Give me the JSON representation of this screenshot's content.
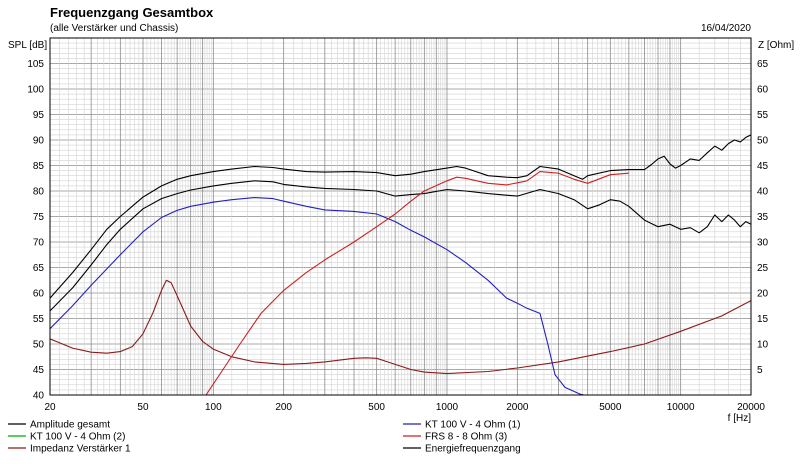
{
  "chart_data": {
    "type": "line",
    "title": "Frequenzgang Gesamtbox",
    "subtitle": "(alle Verstärker und Chassis)",
    "date": "16/04/2020",
    "ylabel_left": "SPL [dB]",
    "ylabel_right": "Z [Ohm]",
    "xlabel": "f [Hz]",
    "x_scale": "log",
    "grid": true,
    "legend_position": "bottom",
    "xlim": [
      20,
      20000
    ],
    "ylim_left": [
      40,
      110
    ],
    "ylim_right": [
      0,
      70
    ],
    "x_ticks": [
      20,
      50,
      100,
      200,
      500,
      1000,
      2000,
      5000,
      10000,
      20000
    ],
    "x_tick_labels": [
      "20",
      "50",
      "100",
      "200",
      "500",
      "1000",
      "2000",
      "5000",
      "10000",
      "20000"
    ],
    "y_left_ticks": [
      40,
      45,
      50,
      55,
      60,
      65,
      70,
      75,
      80,
      85,
      90,
      95,
      100,
      105
    ],
    "y_left_tick_labels": [
      "40",
      "45",
      "50",
      "55",
      "60",
      "65",
      "70",
      "75",
      "80",
      "85",
      "90",
      "95",
      "100",
      "105"
    ],
    "y_right_ticks": [
      5,
      10,
      15,
      20,
      25,
      30,
      35,
      40,
      45,
      50,
      55,
      60,
      65
    ],
    "y_right_tick_labels": [
      "5",
      "10",
      "15",
      "20",
      "25",
      "30",
      "35",
      "40",
      "45",
      "50",
      "55",
      "60",
      "65"
    ],
    "series": [
      {
        "name": "Amplitude gesamt",
        "color": "#000000",
        "axis": "left",
        "points": [
          [
            20,
            56.5
          ],
          [
            25,
            61
          ],
          [
            30,
            65.5
          ],
          [
            35,
            69.5
          ],
          [
            40,
            72.5
          ],
          [
            50,
            76.5
          ],
          [
            60,
            78.5
          ],
          [
            70,
            79.5
          ],
          [
            80,
            80.2
          ],
          [
            100,
            81
          ],
          [
            120,
            81.5
          ],
          [
            150,
            82
          ],
          [
            180,
            81.8
          ],
          [
            200,
            81.3
          ],
          [
            250,
            80.8
          ],
          [
            300,
            80.5
          ],
          [
            400,
            80.3
          ],
          [
            500,
            80
          ],
          [
            600,
            79
          ],
          [
            700,
            79.3
          ],
          [
            800,
            79.5
          ],
          [
            1000,
            80.3
          ],
          [
            1200,
            80
          ],
          [
            1500,
            79.5
          ],
          [
            2000,
            79
          ],
          [
            2500,
            80.3
          ],
          [
            3000,
            79.5
          ],
          [
            3500,
            78.3
          ],
          [
            4000,
            76.5
          ],
          [
            4500,
            77.3
          ],
          [
            5000,
            78.3
          ],
          [
            5500,
            78
          ],
          [
            6000,
            77
          ],
          [
            7000,
            74.3
          ],
          [
            8000,
            73
          ],
          [
            9000,
            73.5
          ],
          [
            10000,
            72.5
          ],
          [
            11000,
            72.8
          ],
          [
            12000,
            71.8
          ],
          [
            13000,
            73
          ],
          [
            14000,
            75.3
          ],
          [
            15000,
            74
          ],
          [
            16000,
            75.3
          ],
          [
            17000,
            74.3
          ],
          [
            18000,
            73
          ],
          [
            19000,
            74
          ],
          [
            20000,
            73.5
          ]
        ]
      },
      {
        "name": "KT 100 V - 4 Ohm (2)",
        "color": "#00aa00",
        "axis": "left",
        "points": []
      },
      {
        "name": "Impedanz Verstärker 1",
        "color": "#8b1a1a",
        "axis": "right",
        "points": [
          [
            20,
            11
          ],
          [
            25,
            9.2
          ],
          [
            30,
            8.4
          ],
          [
            35,
            8.2
          ],
          [
            40,
            8.5
          ],
          [
            45,
            9.5
          ],
          [
            50,
            12
          ],
          [
            55,
            16
          ],
          [
            60,
            20.5
          ],
          [
            63,
            22.5
          ],
          [
            66,
            22
          ],
          [
            70,
            19.5
          ],
          [
            80,
            13.5
          ],
          [
            90,
            10.5
          ],
          [
            100,
            9
          ],
          [
            120,
            7.5
          ],
          [
            150,
            6.5
          ],
          [
            200,
            6
          ],
          [
            250,
            6.2
          ],
          [
            300,
            6.5
          ],
          [
            400,
            7.2
          ],
          [
            450,
            7.3
          ],
          [
            500,
            7.2
          ],
          [
            600,
            6
          ],
          [
            700,
            5
          ],
          [
            800,
            4.5
          ],
          [
            1000,
            4.2
          ],
          [
            1500,
            4.6
          ],
          [
            2000,
            5.3
          ],
          [
            3000,
            6.5
          ],
          [
            5000,
            8.5
          ],
          [
            7000,
            10
          ],
          [
            10000,
            12.5
          ],
          [
            15000,
            15.5
          ],
          [
            20000,
            18.5
          ]
        ]
      },
      {
        "name": "KT 100 V - 4 Ohm (1)",
        "color": "#2222bb",
        "axis": "left",
        "points": [
          [
            20,
            53
          ],
          [
            25,
            57.5
          ],
          [
            30,
            61.5
          ],
          [
            40,
            67.5
          ],
          [
            50,
            72
          ],
          [
            60,
            74.8
          ],
          [
            70,
            76.2
          ],
          [
            80,
            77
          ],
          [
            100,
            77.8
          ],
          [
            120,
            78.3
          ],
          [
            150,
            78.7
          ],
          [
            180,
            78.5
          ],
          [
            200,
            78
          ],
          [
            250,
            77
          ],
          [
            300,
            76.3
          ],
          [
            400,
            76
          ],
          [
            500,
            75.5
          ],
          [
            600,
            74
          ],
          [
            700,
            72.3
          ],
          [
            800,
            71
          ],
          [
            1000,
            68.5
          ],
          [
            1200,
            66
          ],
          [
            1500,
            62.5
          ],
          [
            1800,
            59
          ],
          [
            2000,
            58
          ],
          [
            2200,
            57
          ],
          [
            2500,
            56
          ],
          [
            2700,
            50
          ],
          [
            2900,
            44
          ],
          [
            3200,
            41.5
          ],
          [
            3700,
            40.2
          ],
          [
            4000,
            39.8
          ]
        ]
      },
      {
        "name": "FRS 8 - 8 Ohm (3)",
        "color": "#cc2222",
        "axis": "left",
        "points": [
          [
            93,
            40
          ],
          [
            110,
            45
          ],
          [
            130,
            50
          ],
          [
            160,
            56
          ],
          [
            200,
            60.5
          ],
          [
            250,
            64
          ],
          [
            300,
            66.5
          ],
          [
            400,
            70
          ],
          [
            500,
            73
          ],
          [
            600,
            75.5
          ],
          [
            700,
            78
          ],
          [
            800,
            80
          ],
          [
            1000,
            82
          ],
          [
            1100,
            82.7
          ],
          [
            1200,
            82.5
          ],
          [
            1500,
            81.5
          ],
          [
            1800,
            81.2
          ],
          [
            2000,
            81.6
          ],
          [
            2200,
            82
          ],
          [
            2500,
            83.8
          ],
          [
            3000,
            83.5
          ],
          [
            3500,
            82.3
          ],
          [
            4000,
            81.5
          ],
          [
            5000,
            83.2
          ],
          [
            6000,
            83.5
          ]
        ]
      },
      {
        "name": "Energiefrequenzgang",
        "color": "#000000",
        "axis": "left",
        "points": [
          [
            20,
            59
          ],
          [
            25,
            64
          ],
          [
            30,
            68.5
          ],
          [
            35,
            72.5
          ],
          [
            40,
            75
          ],
          [
            50,
            78.8
          ],
          [
            60,
            81
          ],
          [
            70,
            82.3
          ],
          [
            80,
            83
          ],
          [
            100,
            83.8
          ],
          [
            120,
            84.3
          ],
          [
            150,
            84.8
          ],
          [
            180,
            84.6
          ],
          [
            200,
            84.3
          ],
          [
            250,
            83.8
          ],
          [
            300,
            83.7
          ],
          [
            400,
            83.8
          ],
          [
            500,
            83.6
          ],
          [
            600,
            83
          ],
          [
            700,
            83.3
          ],
          [
            800,
            83.8
          ],
          [
            1000,
            84.5
          ],
          [
            1100,
            84.8
          ],
          [
            1200,
            84.5
          ],
          [
            1500,
            83
          ],
          [
            1800,
            82.7
          ],
          [
            2000,
            82.6
          ],
          [
            2200,
            83
          ],
          [
            2500,
            84.8
          ],
          [
            3000,
            84.3
          ],
          [
            3500,
            83
          ],
          [
            3800,
            82.3
          ],
          [
            4000,
            83
          ],
          [
            5000,
            84
          ],
          [
            6000,
            84.2
          ],
          [
            7000,
            84.2
          ],
          [
            7500,
            85.2
          ],
          [
            8000,
            86.3
          ],
          [
            8500,
            86.8
          ],
          [
            9000,
            85.3
          ],
          [
            9500,
            84.5
          ],
          [
            10000,
            85
          ],
          [
            11000,
            86.3
          ],
          [
            12000,
            86
          ],
          [
            13000,
            87.5
          ],
          [
            14000,
            88.8
          ],
          [
            15000,
            88
          ],
          [
            16000,
            89.3
          ],
          [
            17000,
            90
          ],
          [
            18000,
            89.6
          ],
          [
            19000,
            90.5
          ],
          [
            20000,
            91
          ]
        ]
      }
    ]
  }
}
